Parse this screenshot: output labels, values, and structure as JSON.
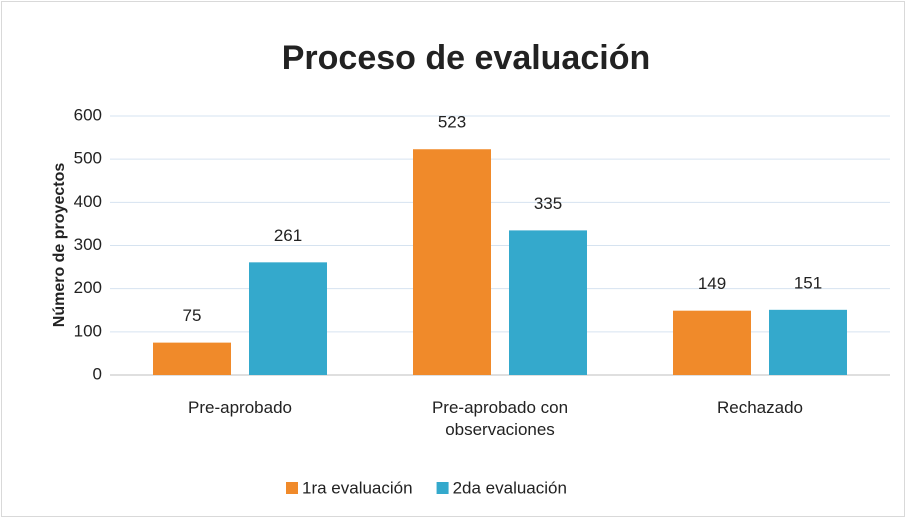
{
  "chart_data": {
    "type": "bar",
    "title": "Proceso de evaluación",
    "y_label": "Número de proyectos",
    "categories": [
      "Pre-aprobado",
      "Pre-aprobado con observaciones",
      "Rechazado"
    ],
    "series": [
      {
        "name": "1ra evaluación",
        "color": "#f08a2a",
        "values": [
          75,
          523,
          149
        ]
      },
      {
        "name": "2da evaluación",
        "color": "#34a9cc",
        "values": [
          261,
          335,
          151
        ]
      }
    ],
    "ylim": [
      0,
      600
    ],
    "yticks": [
      0,
      100,
      200,
      300,
      400,
      500,
      600
    ],
    "grid": true,
    "legend": "bottom"
  }
}
